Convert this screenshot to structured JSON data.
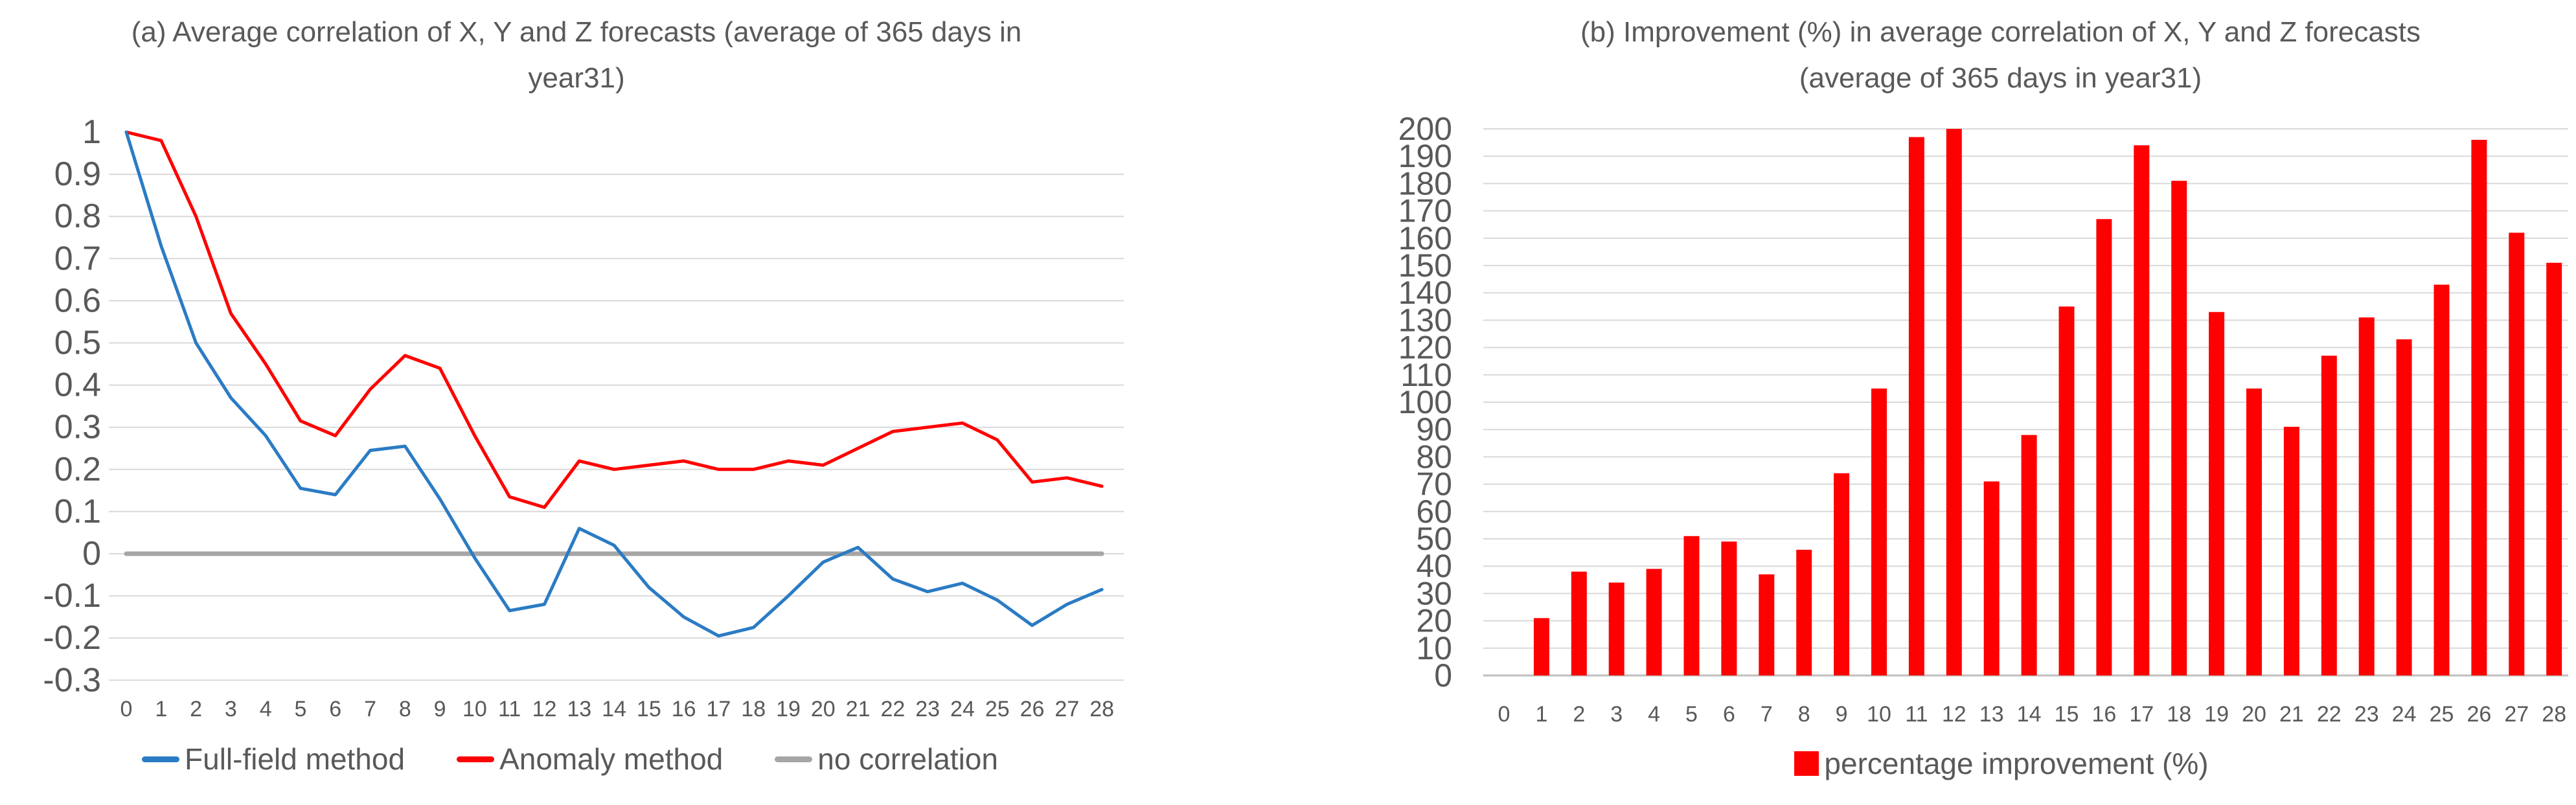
{
  "style": {
    "background": "#FFFFFF",
    "text_color": "#595959",
    "gridline_color": "#D9D9D9",
    "axis_line_color": "#BFBFBF"
  },
  "chart_data": [
    {
      "id": "a",
      "type": "line",
      "title": "(a) Average correlation of X, Y and Z forecasts (average of 365 days in year31)",
      "title_lines": [
        "(a) Average correlation of X, Y and Z forecasts (average of 365 days in",
        "year31)"
      ],
      "xlabel": "",
      "ylabel": "",
      "x": [
        0,
        1,
        2,
        3,
        4,
        5,
        6,
        7,
        8,
        9,
        10,
        11,
        12,
        13,
        14,
        15,
        16,
        17,
        18,
        19,
        20,
        21,
        22,
        23,
        24,
        25,
        26,
        27,
        28
      ],
      "ylim": [
        -0.3,
        1.0
      ],
      "ytick_step": 0.1,
      "ytick_values": [
        1.0,
        0.9,
        0.8,
        0.7,
        0.6,
        0.5,
        0.4,
        0.3,
        0.2,
        0.1,
        0.0,
        -0.1,
        -0.2,
        -0.3
      ],
      "ytick_labels": [
        "1",
        "0.9",
        "0.8",
        "0.7",
        "0.6",
        "0.5",
        "0.4",
        "0.3",
        "0.2",
        "0.1",
        "0",
        "-0.1",
        "-0.2",
        "-0.3"
      ],
      "grid": true,
      "legend_position": "bottom",
      "series": [
        {
          "name": "Full-field method",
          "color": "#2B7BC4",
          "values": [
            1.0,
            0.73,
            0.5,
            0.37,
            0.28,
            0.155,
            0.14,
            0.245,
            0.255,
            0.13,
            -0.01,
            -0.135,
            -0.12,
            0.06,
            0.02,
            -0.08,
            -0.15,
            -0.195,
            -0.175,
            -0.1,
            -0.02,
            0.015,
            -0.06,
            -0.09,
            -0.07,
            -0.11,
            -0.17,
            -0.12,
            -0.085
          ]
        },
        {
          "name": "Anomaly method",
          "color": "#FF0000",
          "values": [
            1.0,
            0.98,
            0.8,
            0.57,
            0.45,
            0.315,
            0.28,
            0.39,
            0.47,
            0.44,
            0.28,
            0.135,
            0.11,
            0.22,
            0.2,
            0.21,
            0.22,
            0.2,
            0.2,
            0.22,
            0.21,
            0.25,
            0.29,
            0.3,
            0.31,
            0.27,
            0.17,
            0.18,
            0.16
          ]
        },
        {
          "name": "no correlation",
          "color": "#A6A6A6",
          "values": [
            0,
            0,
            0,
            0,
            0,
            0,
            0,
            0,
            0,
            0,
            0,
            0,
            0,
            0,
            0,
            0,
            0,
            0,
            0,
            0,
            0,
            0,
            0,
            0,
            0,
            0,
            0,
            0,
            0
          ]
        }
      ]
    },
    {
      "id": "b",
      "type": "bar",
      "title": "(b) Improvement (%) in average correlation of X, Y and Z forecasts (average of 365 days in year31)",
      "title_lines": [
        "(b) Improvement (%) in average correlation of X, Y and Z forecasts",
        "(average of 365 days in year31)"
      ],
      "xlabel": "",
      "ylabel": "",
      "categories": [
        0,
        1,
        2,
        3,
        4,
        5,
        6,
        7,
        8,
        9,
        10,
        11,
        12,
        13,
        14,
        15,
        16,
        17,
        18,
        19,
        20,
        21,
        22,
        23,
        24,
        25,
        26,
        27,
        28
      ],
      "ylim": [
        0,
        200
      ],
      "ytick_step": 10,
      "ytick_values": [
        0,
        10,
        20,
        30,
        40,
        50,
        60,
        70,
        80,
        90,
        100,
        110,
        120,
        130,
        140,
        150,
        160,
        170,
        180,
        190,
        200
      ],
      "ytick_labels": [
        "0",
        "10",
        "20",
        "30",
        "40",
        "50",
        "60",
        "70",
        "80",
        "90",
        "100",
        "110",
        "120",
        "130",
        "140",
        "150",
        "160",
        "170",
        "180",
        "190",
        "200"
      ],
      "grid": true,
      "legend_position": "bottom",
      "series": [
        {
          "name": "percentage improvement (%)",
          "color": "#FF0000",
          "values": [
            0,
            21,
            38,
            34,
            39,
            51,
            49,
            37,
            46,
            74,
            105,
            197,
            200,
            71,
            88,
            135,
            167,
            194,
            181,
            133,
            105,
            91,
            117,
            131,
            123,
            143,
            196,
            162,
            151
          ]
        }
      ]
    }
  ]
}
